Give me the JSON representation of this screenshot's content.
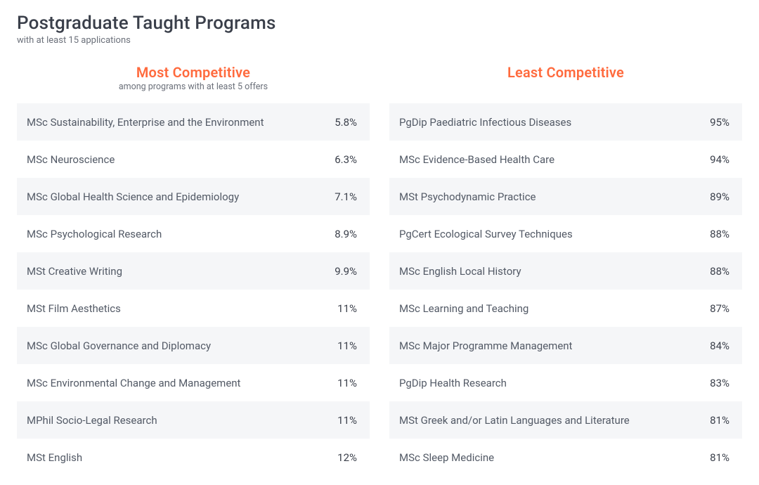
{
  "header": {
    "title": "Postgraduate Taught Programs",
    "subtitle": "with at least 15 applications"
  },
  "colors": {
    "accent": "#ff6a3d",
    "row_alt_bg": "#f5f6f8",
    "row_bg": "#ffffff",
    "text_primary": "#3a3f4a",
    "text_secondary": "#6b707a"
  },
  "columns": {
    "most": {
      "title": "Most Competitive",
      "subtitle": "among programs with at least 5 offers",
      "rows": [
        {
          "name": "MSc Sustainability, Enterprise and the Environment",
          "value": "5.8%"
        },
        {
          "name": "MSc Neuroscience",
          "value": "6.3%"
        },
        {
          "name": "MSc Global Health Science and Epidemiology",
          "value": "7.1%"
        },
        {
          "name": "MSc Psychological Research",
          "value": "8.9%"
        },
        {
          "name": "MSt Creative Writing",
          "value": "9.9%"
        },
        {
          "name": "MSt Film Aesthetics",
          "value": "11%"
        },
        {
          "name": "MSc Global Governance and Diplomacy",
          "value": "11%"
        },
        {
          "name": "MSc Environmental Change and Management",
          "value": "11%"
        },
        {
          "name": "MPhil Socio-Legal Research",
          "value": "11%"
        },
        {
          "name": "MSt English",
          "value": "12%"
        }
      ]
    },
    "least": {
      "title": "Least Competitive",
      "subtitle": "",
      "rows": [
        {
          "name": "PgDip Paediatric Infectious Diseases",
          "value": "95%"
        },
        {
          "name": "MSc Evidence-Based Health Care",
          "value": "94%"
        },
        {
          "name": "MSt Psychodynamic Practice",
          "value": "89%"
        },
        {
          "name": "PgCert Ecological Survey Techniques",
          "value": "88%"
        },
        {
          "name": "MSc English Local History",
          "value": "88%"
        },
        {
          "name": "MSc Learning and Teaching",
          "value": "87%"
        },
        {
          "name": "MSc Major Programme Management",
          "value": "84%"
        },
        {
          "name": "PgDip Health Research",
          "value": "83%"
        },
        {
          "name": "MSt Greek and/or Latin Languages and Literature",
          "value": "81%"
        },
        {
          "name": "MSc Sleep Medicine",
          "value": "81%"
        }
      ]
    }
  }
}
